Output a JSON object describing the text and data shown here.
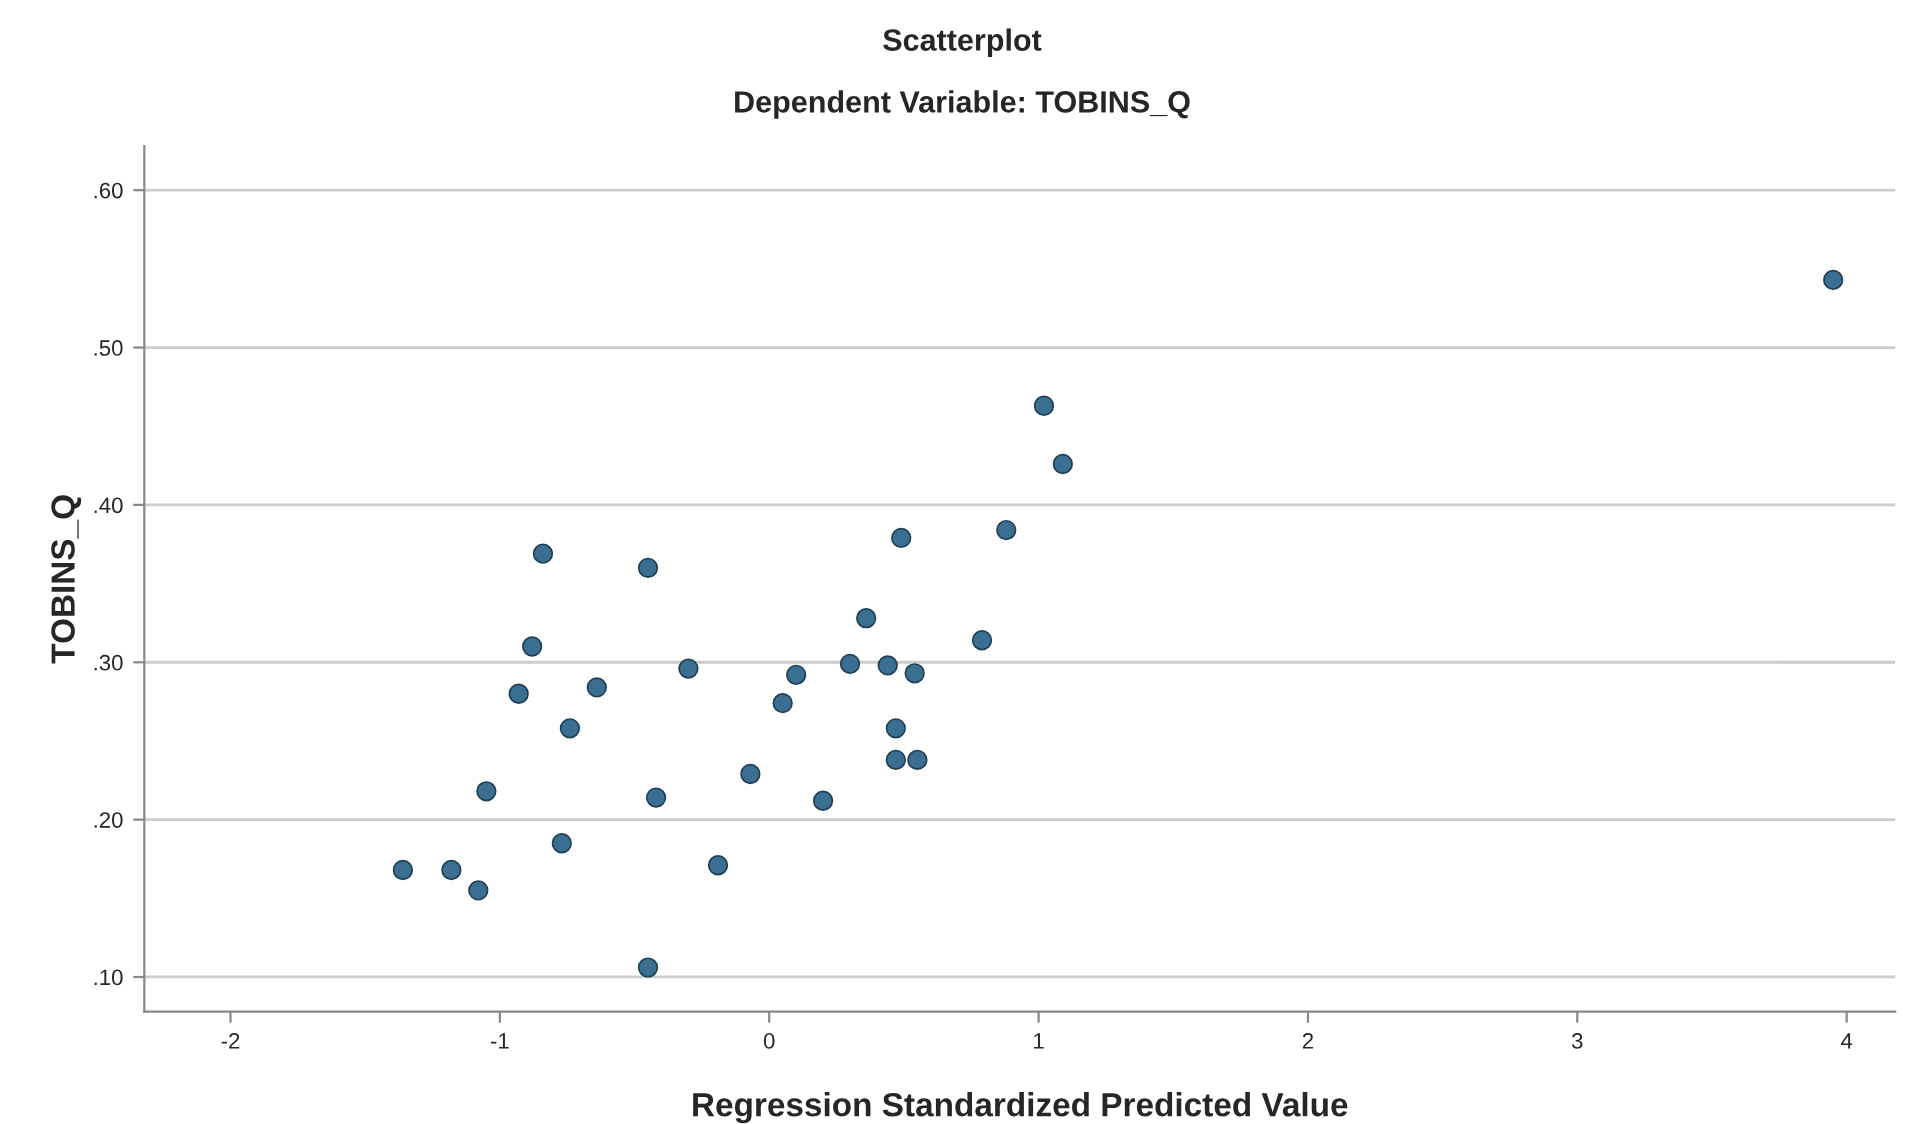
{
  "chart_data": {
    "type": "scatter",
    "title": "Scatterplot",
    "subtitle": "Dependent Variable: TOBINS_Q",
    "xlabel": "Regression Standardized Predicted Value",
    "ylabel": "TOBINS_Q",
    "series": [
      {
        "color": "#3a6f91",
        "x": [
          -1.36,
          -1.18,
          -1.08,
          -1.05,
          -0.93,
          -0.88,
          -0.84,
          -0.77,
          -0.74,
          -0.64,
          -0.45,
          -0.45,
          -0.42,
          -0.3,
          -0.19,
          -0.07,
          0.05,
          0.1,
          0.2,
          0.3,
          0.36,
          0.44,
          0.47,
          0.47,
          0.49,
          0.54,
          0.55,
          0.79,
          0.88,
          1.02,
          1.09,
          3.95
        ],
        "values": [
          0.168,
          0.168,
          0.155,
          0.218,
          0.28,
          0.31,
          0.369,
          0.185,
          0.258,
          0.284,
          0.36,
          0.106,
          0.214,
          0.296,
          0.171,
          0.229,
          0.274,
          0.292,
          0.212,
          0.299,
          0.328,
          0.298,
          0.258,
          0.238,
          0.379,
          0.293,
          0.238,
          0.314,
          0.384,
          0.463,
          0.426,
          0.543
        ]
      }
    ],
    "xlim": [
      -2.32,
      4.18
    ],
    "ylim": [
      0.078,
      0.628
    ],
    "xticks": [
      -2,
      -1,
      0,
      1,
      2,
      3,
      4
    ],
    "yticks": [
      {
        "value": 0.1,
        "label": ".10"
      },
      {
        "value": 0.2,
        "label": ".20"
      },
      {
        "value": 0.3,
        "label": ".30"
      },
      {
        "value": 0.4,
        "label": ".40"
      },
      {
        "value": 0.5,
        "label": ".50"
      },
      {
        "value": 0.6,
        "label": ".60"
      }
    ],
    "grid": "y",
    "marker": "circle",
    "legend": false
  }
}
